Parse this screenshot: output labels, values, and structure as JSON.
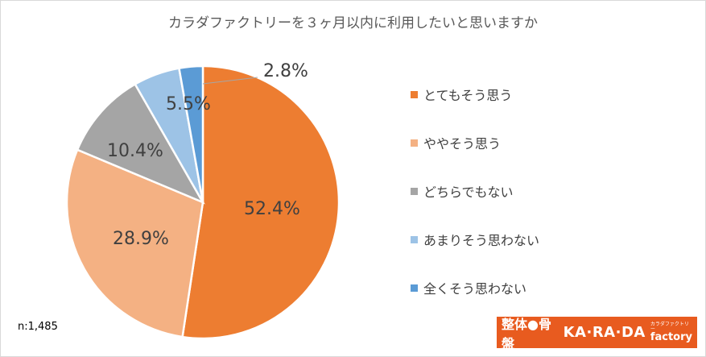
{
  "chart_data": {
    "type": "pie",
    "title": "カラダファクトリーを３ヶ月以内に利用したいと思いますか",
    "slices": [
      {
        "label": "とてもそう思う",
        "value": 52.4,
        "display": "52.4%",
        "color": "#ed7d31"
      },
      {
        "label": "ややそう思う",
        "value": 28.9,
        "display": "28.9%",
        "color": "#f4b183"
      },
      {
        "label": "どちらでもない",
        "value": 10.4,
        "display": "10.4%",
        "color": "#a5a5a5"
      },
      {
        "label": "あまりそう思わない",
        "value": 5.5,
        "display": "5.5%",
        "color": "#9dc3e6"
      },
      {
        "label": "全くそう思わない",
        "value": 2.8,
        "display": "2.8%",
        "color": "#5b9bd5"
      }
    ],
    "legend_position": "right"
  },
  "note": "n:1,485",
  "logo": {
    "jp": "整体●骨盤",
    "en": "KA·RA·DA",
    "kana": "カラダファクトリー",
    "factory": "factory"
  }
}
